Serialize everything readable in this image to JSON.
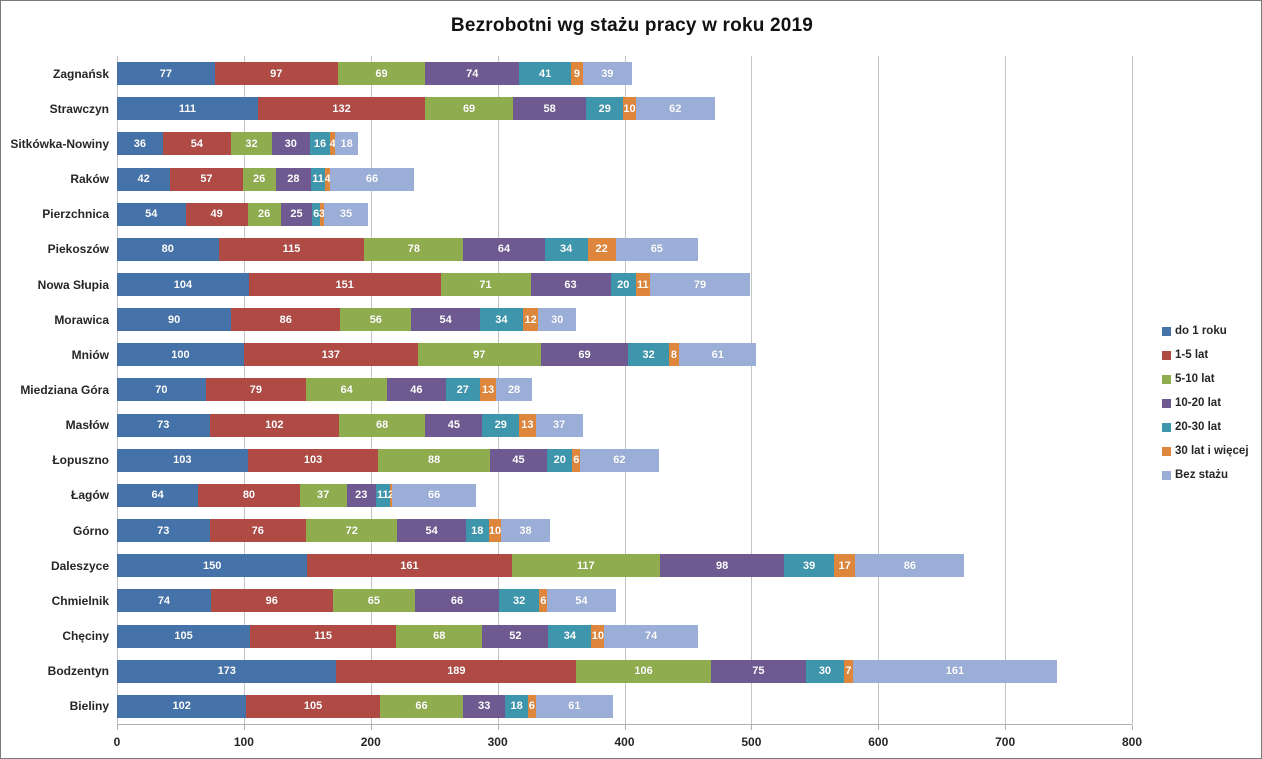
{
  "title": "Bezrobotni wg stażu pracy w roku 2019",
  "chart_data": {
    "type": "bar",
    "orientation": "horizontal",
    "stacked": true,
    "title": "Bezrobotni wg stażu pracy w roku 2019",
    "xlabel": "",
    "ylabel": "",
    "xlim": [
      0,
      800
    ],
    "x_ticks": [
      0,
      100,
      200,
      300,
      400,
      500,
      600,
      700,
      800
    ],
    "grid": true,
    "data_labels": true,
    "legend_position": "right",
    "categories": [
      "Zagnańsk",
      "Strawczyn",
      "Sitkówka-Nowiny",
      "Raków",
      "Pierzchnica",
      "Piekoszów",
      "Nowa Słupia",
      "Morawica",
      "Mniów",
      "Miedziana Góra",
      "Masłów",
      "Łopuszno",
      "Łagów",
      "Górno",
      "Daleszyce",
      "Chmielnik",
      "Chęciny",
      "Bodzentyn",
      "Bieliny"
    ],
    "series": [
      {
        "name": "do 1 roku",
        "color": "#4573A9",
        "values": [
          77,
          111,
          36,
          42,
          54,
          80,
          104,
          90,
          100,
          70,
          73,
          103,
          64,
          73,
          150,
          74,
          105,
          173,
          102
        ]
      },
      {
        "name": "1-5 lat",
        "color": "#AF4A45",
        "values": [
          97,
          132,
          54,
          57,
          49,
          115,
          151,
          86,
          137,
          79,
          102,
          103,
          80,
          76,
          161,
          96,
          115,
          189,
          105
        ]
      },
      {
        "name": "5-10 lat",
        "color": "#8FAC4E",
        "values": [
          69,
          69,
          32,
          26,
          26,
          78,
          71,
          56,
          97,
          64,
          68,
          88,
          37,
          72,
          117,
          65,
          68,
          106,
          66
        ]
      },
      {
        "name": "10-20 lat",
        "color": "#6E5A91",
        "values": [
          74,
          58,
          30,
          28,
          25,
          64,
          63,
          54,
          69,
          46,
          45,
          45,
          23,
          54,
          98,
          66,
          52,
          75,
          33
        ]
      },
      {
        "name": "20-30 lat",
        "color": "#3E96AD",
        "values": [
          41,
          29,
          16,
          11,
          6,
          34,
          20,
          34,
          32,
          27,
          29,
          20,
          11,
          18,
          39,
          32,
          34,
          30,
          18
        ]
      },
      {
        "name": "30 lat i więcej",
        "color": "#DE873C",
        "values": [
          9,
          10,
          4,
          4,
          3,
          22,
          11,
          12,
          8,
          13,
          13,
          6,
          2,
          10,
          17,
          6,
          10,
          7,
          6
        ]
      },
      {
        "name": "Bez stażu",
        "color": "#9BAED8",
        "values": [
          39,
          62,
          18,
          66,
          35,
          65,
          79,
          30,
          61,
          28,
          37,
          62,
          66,
          38,
          86,
          54,
          74,
          161,
          61
        ]
      }
    ]
  }
}
